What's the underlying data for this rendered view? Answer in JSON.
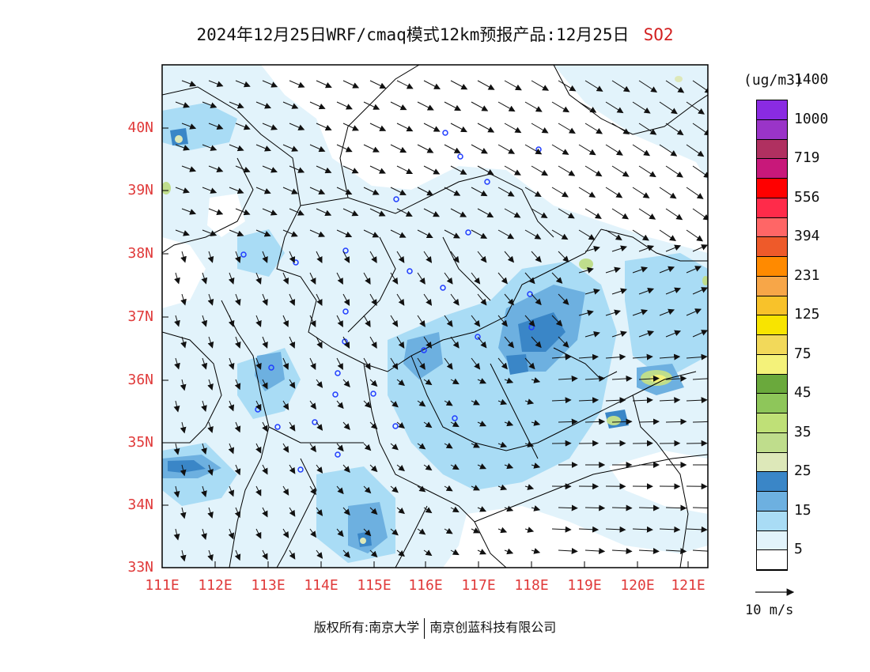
{
  "title": {
    "main": "2024年12月25日WRF/cmaq模式12km预报产品:12月25日",
    "species": "SO2",
    "species_color": "#d22020"
  },
  "map": {
    "lon_range": [
      111,
      121.4
    ],
    "lat_range": [
      33,
      40.9
    ],
    "y_ticks": [
      "40N",
      "39N",
      "38N",
      "37N",
      "36N",
      "35N",
      "34N",
      "33N"
    ],
    "x_ticks": [
      "111E",
      "112E",
      "113E",
      "114E",
      "115E",
      "116E",
      "117E",
      "118E",
      "119E",
      "120E",
      "121E"
    ],
    "tick_color": "#e03a3a"
  },
  "colorbar": {
    "units": "(ug/m3)",
    "colors": [
      "#ffffff",
      "#e2f3fb",
      "#a9dcf5",
      "#6db0e0",
      "#3a86c7",
      "#dde8b9",
      "#bfdd8c",
      "#bfe077",
      "#8ec65a",
      "#6aa93c",
      "#f4f27a",
      "#f2d95a",
      "#f8e400",
      "#f8c22a",
      "#f7a648",
      "#ff8a00",
      "#ee5a2a",
      "#ff6666",
      "#ff2b4a",
      "#ff0000",
      "#c8187a",
      "#b03060",
      "#9a34c8",
      "#8a2be2"
    ],
    "labels": [
      "5",
      "15",
      "25",
      "35",
      "45",
      "75",
      "125",
      "231",
      "394",
      "556",
      "719",
      "1000",
      "1400"
    ]
  },
  "wind_key": {
    "label": "10 m/s"
  },
  "footer": {
    "left": "版权所有:南京大学",
    "right": "南京创蓝科技有限公司"
  }
}
